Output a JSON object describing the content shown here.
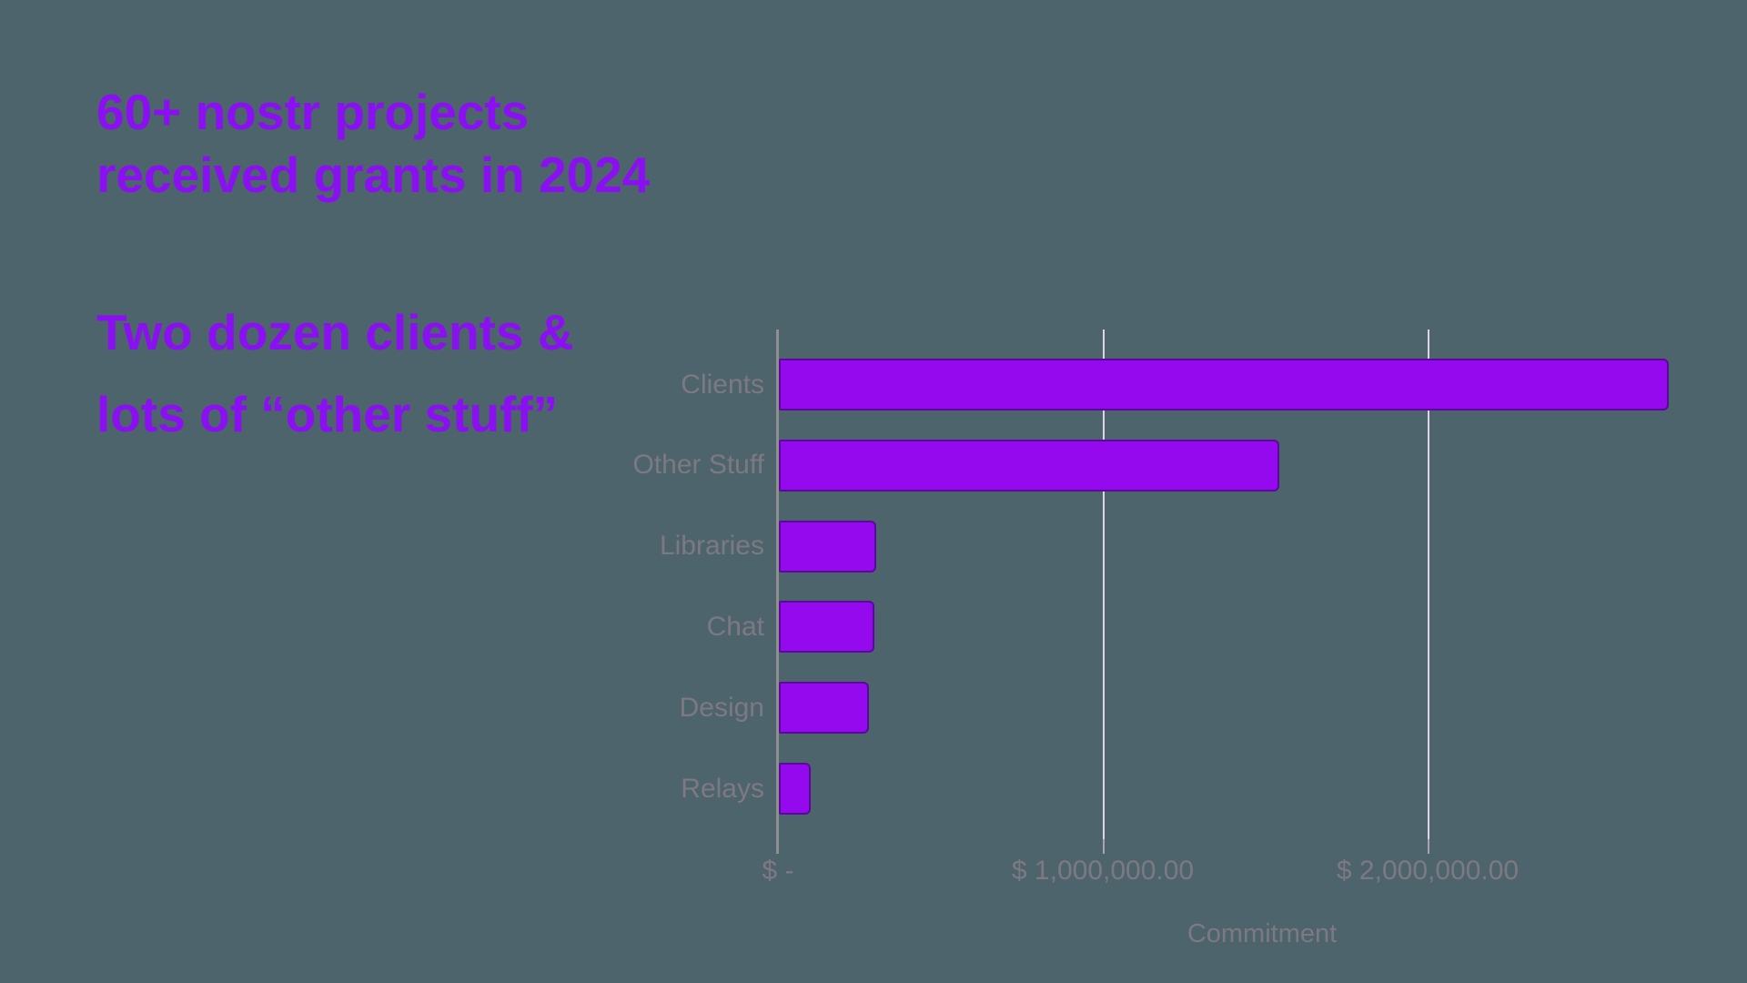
{
  "background_color": "#4d646c",
  "headings": {
    "title": {
      "lines": [
        "60+ nostr projects",
        "received grants in 2024"
      ],
      "color": "#8a10f1"
    },
    "subtitle": {
      "lines": [
        "Two dozen clients &",
        "lots of “other stuff”"
      ],
      "color": "#8a10f1"
    }
  },
  "chart_data": {
    "type": "bar",
    "orientation": "horizontal",
    "title": "",
    "categories": [
      "Clients",
      "Other Stuff",
      "Libraries",
      "Chat",
      "Design",
      "Relays"
    ],
    "values": [
      2740000,
      1540000,
      300000,
      295000,
      277000,
      98000
    ],
    "xlabel": "Commitment",
    "ylabel": "",
    "xlim": [
      0,
      2870000
    ],
    "xticks": [
      {
        "value": 0,
        "label": "$ -"
      },
      {
        "value": 1000000,
        "label": "$ 1,000,000.00"
      },
      {
        "value": 2000000,
        "label": "$ 2,000,000.00"
      }
    ],
    "grid": "vertical gridlines at 1M and 2M",
    "legend": "none",
    "colors": {
      "bar_fill": "#9409ee",
      "bar_border": "#5a0a9a",
      "gridline": "#ddd5e2",
      "axis_line": "#8f8f92",
      "tick_mark": "#a9a3ad",
      "label_text": "#7d7983"
    }
  }
}
